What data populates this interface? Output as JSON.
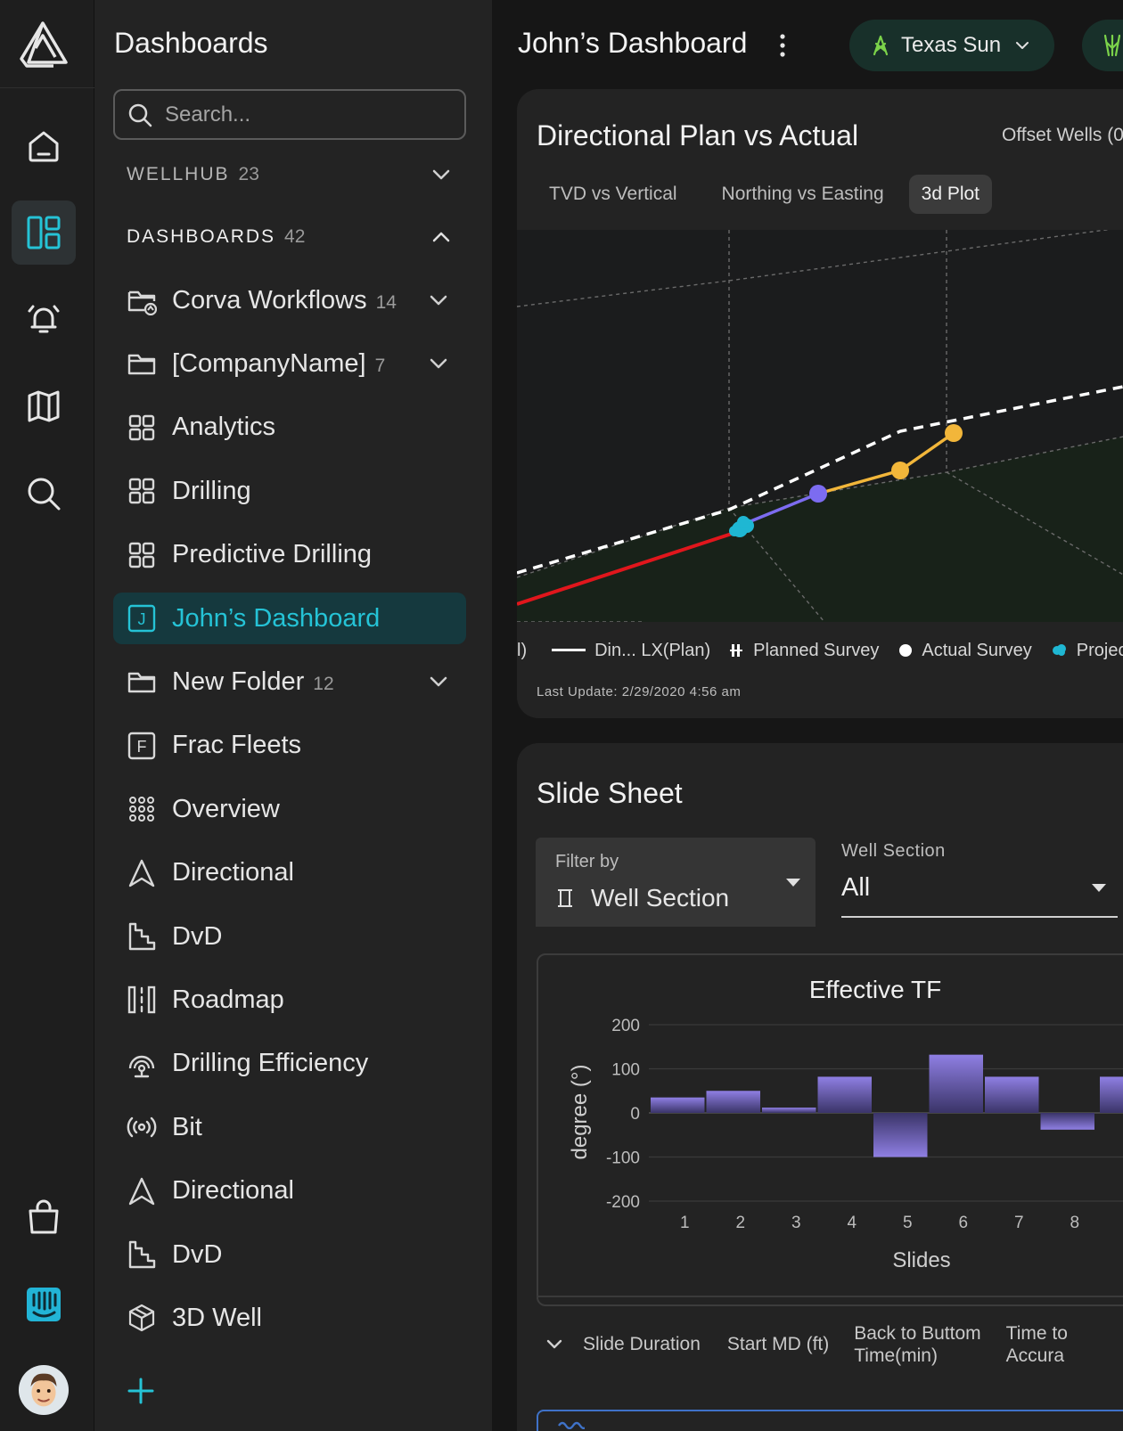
{
  "panel": {
    "title": "Dashboards",
    "search_placeholder": "Search...",
    "sections": [
      {
        "label": "WELLHUB",
        "count": "23",
        "expanded": false
      },
      {
        "label": "DASHBOARDS",
        "count": "42",
        "expanded": true
      }
    ],
    "items": [
      {
        "label": "Corva Workflows",
        "count": "14",
        "icon": "folder-shared-icon",
        "chevron": true
      },
      {
        "label": "[CompanyName]",
        "count": "7",
        "icon": "folder-icon",
        "chevron": true
      },
      {
        "label": "Analytics",
        "count": "",
        "icon": "grid-icon"
      },
      {
        "label": "Drilling",
        "count": "",
        "icon": "grid-icon"
      },
      {
        "label": "Predictive Drilling",
        "count": "",
        "icon": "grid-icon"
      },
      {
        "label": "John’s Dashboard",
        "count": "",
        "icon": "letter-j-icon",
        "letter": "J",
        "active": true
      },
      {
        "label": "New Folder",
        "count": "12",
        "icon": "folder-icon",
        "chevron": true
      },
      {
        "label": "Frac Fleets",
        "count": "",
        "icon": "letter-f-icon",
        "letter": "F"
      },
      {
        "label": "Overview",
        "count": "",
        "icon": "dots-grid-icon"
      },
      {
        "label": "Directional",
        "count": "",
        "icon": "navigation-arrow-icon"
      },
      {
        "label": "DvD",
        "count": "",
        "icon": "stairs-chart-icon"
      },
      {
        "label": "Roadmap",
        "count": "",
        "icon": "roadmap-icon"
      },
      {
        "label": "Drilling Efficiency",
        "count": "",
        "icon": "gauge-icon"
      },
      {
        "label": "Bit",
        "count": "",
        "icon": "broadcast-icon"
      },
      {
        "label": "Directional",
        "count": "",
        "icon": "navigation-arrow-icon"
      },
      {
        "label": "DvD",
        "count": "",
        "icon": "stairs-chart-icon"
      },
      {
        "label": "3D Well",
        "count": "",
        "icon": "cube-icon"
      }
    ]
  },
  "header": {
    "title": "John’s Dashboard",
    "rig_chip": "Texas Sun"
  },
  "directional": {
    "title": "Directional Plan vs Actual",
    "offset_label": "Offset Wells (0",
    "tabs": [
      "TVD vs Vertical",
      "Northing vs Easting",
      "3d Plot"
    ],
    "active_tab": 2,
    "legend": {
      "partial": "l)",
      "plan": "Din... LX(Plan)",
      "planned_survey": "Planned Survey",
      "actual_survey": "Actual Survey",
      "projection": "Projec"
    },
    "last_update": "Last Update: 2/29/2020 4:56 am"
  },
  "slide_sheet": {
    "title": "Slide Sheet",
    "filter_label": "Filter by",
    "filter_value": "Well Section",
    "well_section_label": "Well Section",
    "well_section_value": "All",
    "table_headers": [
      "Slide Duration",
      "Start MD (ft)",
      "Back to Buttom\nTime(min)",
      "Time to\nAccura"
    ]
  },
  "chart_data": {
    "type": "bar",
    "title": "Effective TF",
    "xlabel": "Slides",
    "ylabel": "degree (°)",
    "categories": [
      "1",
      "2",
      "3",
      "4",
      "5",
      "6",
      "7",
      "8"
    ],
    "values": [
      35,
      50,
      12,
      82,
      -100,
      132,
      82,
      -38
    ],
    "ylim": [
      -200,
      200
    ],
    "yticks": [
      200,
      100,
      0,
      -100,
      -200
    ],
    "bar_color": "#8f7fe3"
  },
  "colors": {
    "accent": "#25c3d6",
    "chip_green": "#7bd34a",
    "plan_line": "#ffffff",
    "actual_red": "#e0161c",
    "survey_orange": "#f2b63a",
    "survey_purple": "#7c6cf0"
  }
}
